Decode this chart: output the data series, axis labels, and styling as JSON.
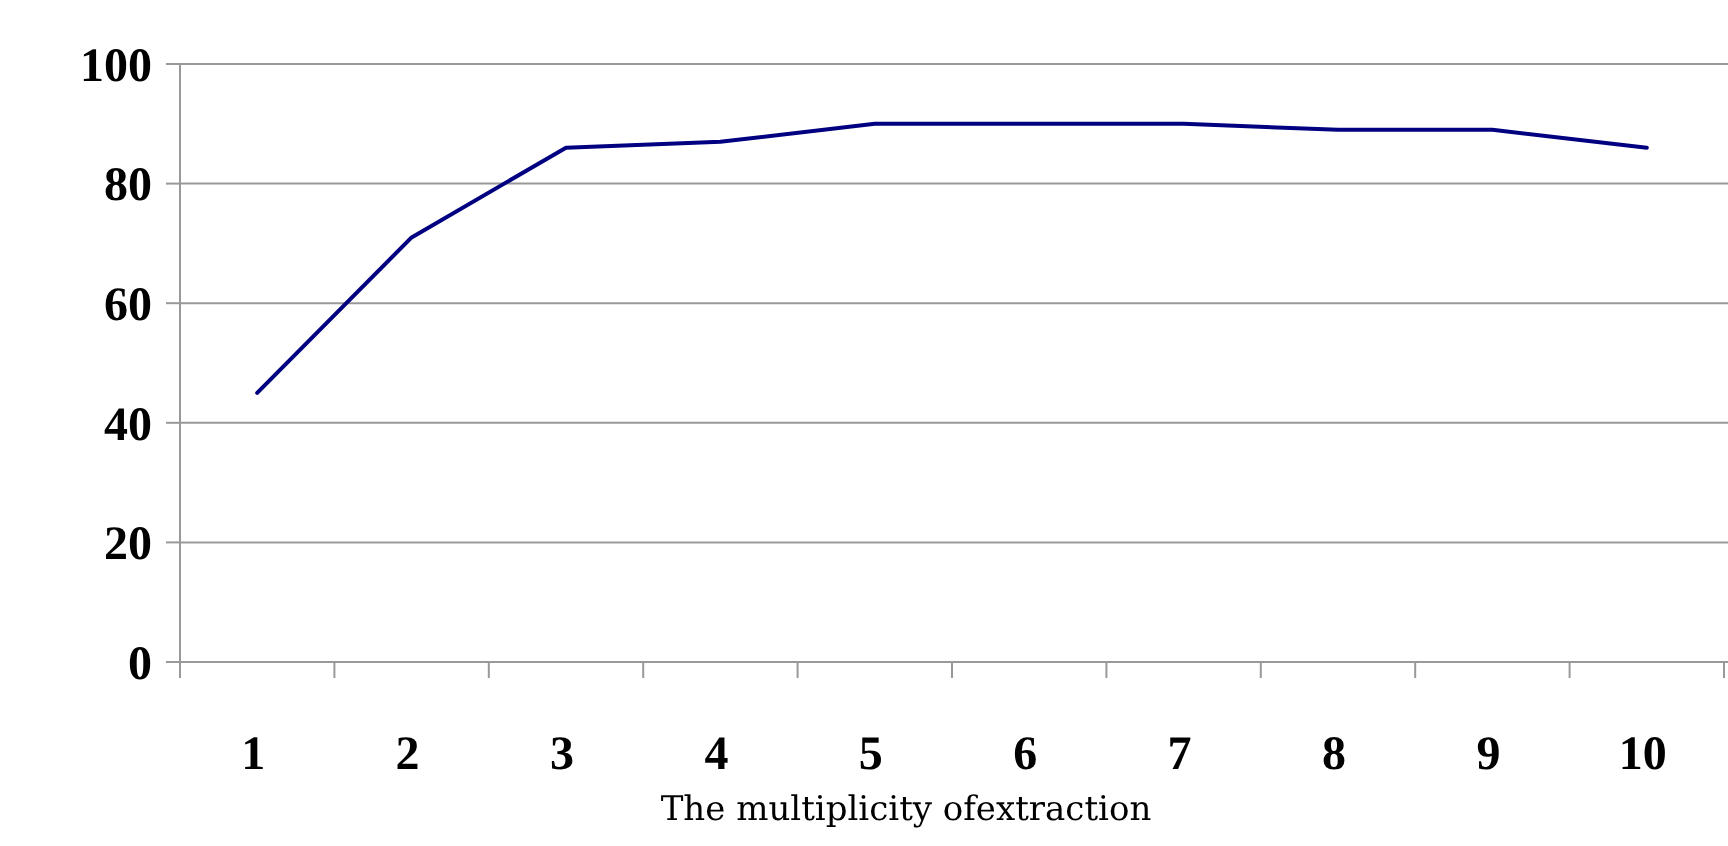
{
  "chart_data": {
    "type": "line",
    "xlabel": "The multiplicity ofextraction",
    "categories": [
      "1",
      "2",
      "3",
      "4",
      "5",
      "6",
      "7",
      "8",
      "9",
      "10"
    ],
    "series": [
      {
        "color": "#000080",
        "values": [
          45,
          71,
          86,
          87,
          90,
          90,
          90,
          89,
          89,
          86
        ]
      }
    ],
    "ylim": [
      0,
      100
    ],
    "yticks": [
      0,
      20,
      40,
      60,
      80,
      100
    ],
    "grid": "y",
    "marker": "none",
    "line_style": "solid"
  }
}
